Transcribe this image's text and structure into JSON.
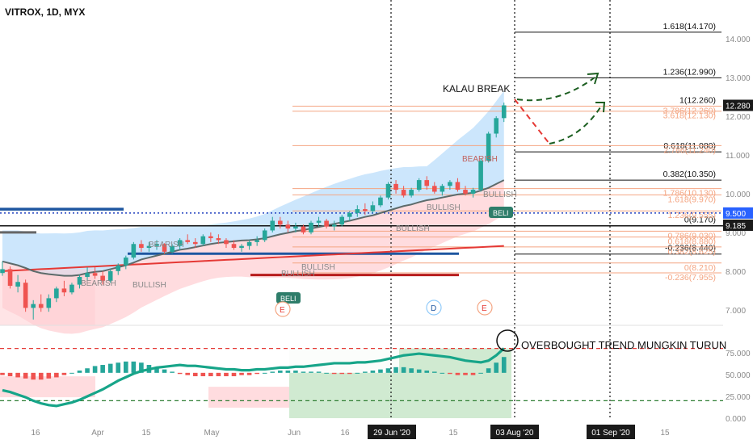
{
  "title": "VITROX, 1D, MYX",
  "colors": {
    "up": "#26a69a",
    "down": "#ef5350",
    "band_upper": "#bbdefb",
    "band_lower": "#ffcdd2",
    "ma_gray": "#5d6b6b",
    "ma_red": "#e53935",
    "rsi": "#17a589",
    "fib_orange": "#f4a582",
    "fib_black": "#111111",
    "support_blue": "#1e56a0",
    "dotted_blue": "#1e3fbf",
    "projection_red": "#e53935",
    "projection_green": "#1b5e20",
    "price_badge": "#1a1a1a",
    "level_badge": "#2962ff"
  },
  "chart_data": [
    {
      "type": "candlestick",
      "title": "VITROX, 1D, MYX",
      "y_axis": {
        "min": 6.6,
        "max": 15.0,
        "ticks": [
          "14.000",
          "13.000",
          "12.000",
          "11.000",
          "10.000",
          "9.000",
          "8.000",
          "7.000"
        ]
      },
      "x_axis": {
        "labels": [
          "16",
          "Apr",
          "15",
          "May",
          "Jun",
          "16",
          "29 Jun '20",
          "15",
          "03 Aug '20",
          "01 Sep '20",
          "15"
        ]
      },
      "price_badges": [
        {
          "label": "12.280",
          "value": 12.28,
          "color": "#1a1a1a"
        },
        {
          "label": "9.500",
          "value": 9.5,
          "color": "#2962ff"
        },
        {
          "label": "9.185",
          "value": 9.185,
          "color": "#1a1a1a"
        }
      ],
      "candles": [
        [
          7.95,
          8.25,
          7.88,
          8.05
        ],
        [
          8.05,
          8.12,
          7.55,
          7.62
        ],
        [
          7.6,
          7.9,
          7.45,
          7.72
        ],
        [
          7.7,
          7.78,
          6.95,
          7.05
        ],
        [
          7.05,
          7.25,
          6.75,
          7.15
        ],
        [
          7.15,
          7.4,
          6.95,
          7.05
        ],
        [
          7.05,
          7.4,
          6.95,
          7.3
        ],
        [
          7.3,
          7.6,
          7.2,
          7.55
        ],
        [
          7.55,
          7.75,
          7.35,
          7.45
        ],
        [
          7.45,
          7.7,
          7.4,
          7.65
        ],
        [
          7.65,
          7.9,
          7.55,
          7.85
        ],
        [
          7.85,
          8.1,
          7.75,
          7.95
        ],
        [
          7.95,
          8.1,
          7.8,
          7.88
        ],
        [
          7.88,
          8.0,
          7.65,
          7.75
        ],
        [
          7.75,
          8.05,
          7.7,
          8.0
        ],
        [
          8.0,
          8.2,
          7.9,
          8.15
        ],
        [
          8.15,
          8.4,
          8.05,
          8.35
        ],
        [
          8.35,
          8.75,
          8.3,
          8.7
        ],
        [
          8.7,
          8.8,
          8.5,
          8.6
        ],
        [
          8.6,
          8.75,
          8.5,
          8.65
        ],
        [
          8.65,
          8.8,
          8.55,
          8.7
        ],
        [
          8.7,
          8.72,
          8.45,
          8.5
        ],
        [
          8.5,
          8.7,
          8.45,
          8.65
        ],
        [
          8.65,
          8.85,
          8.55,
          8.8
        ],
        [
          8.8,
          8.95,
          8.7,
          8.75
        ],
        [
          8.75,
          8.85,
          8.6,
          8.7
        ],
        [
          8.7,
          8.95,
          8.65,
          8.9
        ],
        [
          8.9,
          9.0,
          8.75,
          8.85
        ],
        [
          8.85,
          8.95,
          8.7,
          8.8
        ],
        [
          8.8,
          8.85,
          8.6,
          8.7
        ],
        [
          8.7,
          8.8,
          8.55,
          8.6
        ],
        [
          8.6,
          8.7,
          8.5,
          8.65
        ],
        [
          8.65,
          8.8,
          8.55,
          8.75
        ],
        [
          8.75,
          8.9,
          8.65,
          8.8
        ],
        [
          8.8,
          9.1,
          8.75,
          9.05
        ],
        [
          9.05,
          9.4,
          9.0,
          9.3
        ],
        [
          9.3,
          9.4,
          9.1,
          9.2
        ],
        [
          9.2,
          9.3,
          9.0,
          9.1
        ],
        [
          9.1,
          9.25,
          9.0,
          9.15
        ],
        [
          9.15,
          9.2,
          8.95,
          9.0
        ],
        [
          9.0,
          9.3,
          8.95,
          9.25
        ],
        [
          9.25,
          9.4,
          9.15,
          9.3
        ],
        [
          9.3,
          9.35,
          9.1,
          9.15
        ],
        [
          9.15,
          9.3,
          9.05,
          9.2
        ],
        [
          9.2,
          9.45,
          9.15,
          9.4
        ],
        [
          9.4,
          9.55,
          9.3,
          9.5
        ],
        [
          9.5,
          9.7,
          9.4,
          9.6
        ],
        [
          9.6,
          9.75,
          9.45,
          9.55
        ],
        [
          9.55,
          9.8,
          9.5,
          9.7
        ],
        [
          9.7,
          9.95,
          9.65,
          9.9
        ],
        [
          9.9,
          10.3,
          9.85,
          10.25
        ],
        [
          10.25,
          10.35,
          10.0,
          10.1
        ],
        [
          10.1,
          10.2,
          9.9,
          9.95
        ],
        [
          9.95,
          10.15,
          9.9,
          10.1
        ],
        [
          10.1,
          10.4,
          10.05,
          10.35
        ],
        [
          10.35,
          10.45,
          10.1,
          10.2
        ],
        [
          10.2,
          10.3,
          10.0,
          10.05
        ],
        [
          10.05,
          10.25,
          9.95,
          10.2
        ],
        [
          10.2,
          10.35,
          10.1,
          10.3
        ],
        [
          10.3,
          10.4,
          10.05,
          10.1
        ],
        [
          10.1,
          10.2,
          9.95,
          10.0
        ],
        [
          10.0,
          10.15,
          9.9,
          10.1
        ],
        [
          10.1,
          10.9,
          10.05,
          10.85
        ],
        [
          10.85,
          11.6,
          10.8,
          11.55
        ],
        [
          11.55,
          12.0,
          11.45,
          11.95
        ],
        [
          11.95,
          12.35,
          11.85,
          12.28
        ]
      ],
      "moving_average_gray": [
        8.25,
        8.2,
        8.15,
        8.08,
        8.0,
        7.95,
        7.92,
        7.9,
        7.88,
        7.88,
        7.9,
        7.95,
        7.98,
        8.0,
        8.05,
        8.1,
        8.15,
        8.22,
        8.3,
        8.35,
        8.4,
        8.45,
        8.5,
        8.55,
        8.58,
        8.62,
        8.66,
        8.7,
        8.73,
        8.75,
        8.77,
        8.79,
        8.8,
        8.82,
        8.85,
        8.9,
        8.95,
        8.99,
        9.03,
        9.06,
        9.1,
        9.14,
        9.18,
        9.22,
        9.26,
        9.3,
        9.35,
        9.4,
        9.44,
        9.5,
        9.56,
        9.62,
        9.68,
        9.72,
        9.78,
        9.83,
        9.86,
        9.9,
        9.94,
        9.98,
        10.0,
        10.02,
        10.08,
        10.15,
        10.25,
        10.35
      ],
      "moving_average_red": [
        8.0,
        8.01,
        8.02,
        8.03,
        8.04,
        8.05,
        8.06,
        8.07,
        8.08,
        8.09,
        8.1,
        8.11,
        8.12,
        8.13,
        8.14,
        8.15,
        8.16,
        8.17,
        8.18,
        8.19,
        8.2,
        8.21,
        8.22,
        8.23,
        8.24,
        8.25,
        8.26,
        8.27,
        8.28,
        8.29,
        8.3,
        8.31,
        8.32,
        8.33,
        8.34,
        8.35,
        8.36,
        8.37,
        8.38,
        8.39,
        8.4,
        8.41,
        8.42,
        8.43,
        8.44,
        8.45,
        8.46,
        8.47,
        8.48,
        8.49,
        8.5,
        8.51,
        8.52,
        8.53,
        8.54,
        8.55,
        8.56,
        8.57,
        8.58,
        8.59,
        8.6,
        8.61,
        8.62,
        8.63,
        8.64,
        8.65
      ],
      "fibonacci_upper": [
        {
          "label": "1.618(14.170)",
          "value": 14.17
        },
        {
          "label": "1.236(12.990)",
          "value": 12.99
        },
        {
          "label": "1(12.260)",
          "value": 12.26
        },
        {
          "label": "0.618(11.080)",
          "value": 11.08
        },
        {
          "label": "0.382(10.350)",
          "value": 10.35
        },
        {
          "label": "0(9.170)",
          "value": 9.17
        },
        {
          "label": "-0.236(8.440)",
          "value": 8.44
        }
      ],
      "fibonacci_lower": [
        {
          "label": "3.786(12.260)",
          "value": 12.26
        },
        {
          "label": "3.618(12.130)",
          "value": 12.13
        },
        {
          "label": "2.786(11.240)",
          "value": 11.24
        },
        {
          "label": "1.786(10.130)",
          "value": 10.13
        },
        {
          "label": "1.618(9.970)",
          "value": 9.97
        },
        {
          "label": "1.236(9.555)",
          "value": 9.555
        },
        {
          "label": "0.786(9.030)",
          "value": 9.03
        },
        {
          "label": "0.618(8.880)",
          "value": 8.88
        },
        {
          "label": "0.382(8.625)",
          "value": 8.625
        },
        {
          "label": "0(8.210)",
          "value": 8.21
        },
        {
          "label": "-0.236(7.955)",
          "value": 7.955
        }
      ],
      "support_lines": [
        8.45,
        9.5,
        7.9
      ],
      "annotations": {
        "kalau_break": "KALAU BREAK",
        "bearish_1": "BEARISH",
        "bearish_2": "BEARISH",
        "bearish_3": "BEARISH",
        "bullish_1": "BULLISH",
        "bullish_2": "BULLISH",
        "bullish_3": "BULLISH",
        "bullish_4": "BULLISH",
        "bullish_5": "BULLISH",
        "bullish_6": "BULLISH",
        "beli_1": "BELI",
        "beli_2": "BELI",
        "event_e1": "E",
        "event_d": "D",
        "event_e2": "E"
      }
    },
    {
      "type": "line",
      "title": "",
      "y_axis": {
        "min": 0,
        "max": 100,
        "ticks": [
          "75.000",
          "50.000",
          "25.000",
          "0.000"
        ]
      },
      "overbought_level": 80,
      "oversold_level": 20,
      "annotation": "OVERBOUGHT TREND MUNGKIN TURUN",
      "series": [
        {
          "values": [
            32,
            30,
            27,
            24,
            20,
            17,
            15,
            14,
            16,
            18,
            21,
            25,
            29,
            33,
            38,
            43,
            47,
            51,
            54,
            56,
            58,
            59,
            60,
            61,
            60,
            60,
            59,
            58,
            57,
            56,
            56,
            55,
            55,
            56,
            56,
            57,
            58,
            58,
            59,
            59,
            60,
            61,
            62,
            63,
            63,
            63,
            64,
            64,
            65,
            66,
            68,
            70,
            72,
            73,
            74,
            73,
            72,
            71,
            70,
            68,
            66,
            65,
            64,
            66,
            72,
            80
          ]
        }
      ],
      "histogram": [
        -0.2,
        -0.3,
        -0.4,
        -0.5,
        -0.6,
        -0.6,
        -0.5,
        -0.4,
        -0.2,
        0.0,
        0.2,
        0.4,
        0.6,
        0.7,
        0.8,
        0.9,
        1.0,
        1.0,
        0.9,
        0.7,
        0.5,
        0.3,
        0.1,
        -0.1,
        -0.2,
        -0.3,
        -0.3,
        -0.3,
        -0.3,
        -0.3,
        -0.3,
        -0.2,
        -0.2,
        -0.1,
        0.0,
        0.1,
        0.2,
        0.2,
        0.2,
        0.1,
        0.1,
        0.1,
        0.0,
        -0.1,
        -0.1,
        -0.1,
        0.0,
        0.1,
        0.2,
        0.3,
        0.4,
        0.5,
        0.5,
        0.4,
        0.3,
        0.2,
        0.1,
        0.0,
        -0.1,
        -0.2,
        -0.2,
        -0.2,
        0.0,
        0.4,
        0.9,
        1.4
      ]
    }
  ]
}
